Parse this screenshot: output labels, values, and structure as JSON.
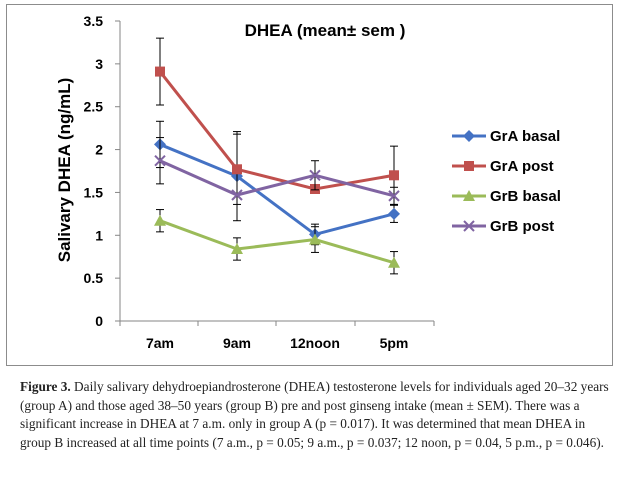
{
  "chart_data": {
    "type": "line",
    "title": "DHEA (mean± sem )",
    "ylabel": "Salivary DHEA (ng/mL)",
    "xlabel": "",
    "categories": [
      "7am",
      "9am",
      "12noon",
      "5pm"
    ],
    "ylim": [
      0,
      3.5
    ],
    "yticks": [
      "0",
      "0.5",
      "1",
      "1.5",
      "2",
      "2.5",
      "3",
      "3.5"
    ],
    "grid": false,
    "legend_position": "right",
    "series": [
      {
        "name": "GrA basal",
        "color": "#4472c4",
        "marker": "diamond",
        "values": [
          2.06,
          1.69,
          1.01,
          1.25
        ],
        "err": [
          0.27,
          0.52,
          0.12,
          0.1
        ]
      },
      {
        "name": "GrA post",
        "color": "#c0504d",
        "marker": "square",
        "values": [
          2.91,
          1.77,
          1.54,
          1.7
        ],
        "err": [
          0.39,
          0.41,
          0.0,
          0.34
        ]
      },
      {
        "name": "GrB basal",
        "color": "#9bbb59",
        "marker": "triangle",
        "values": [
          1.17,
          0.84,
          0.95,
          0.68
        ],
        "err": [
          0.13,
          0.13,
          0.15,
          0.13
        ]
      },
      {
        "name": "GrB post",
        "color": "#8064a2",
        "marker": "x",
        "values": [
          1.87,
          1.47,
          1.7,
          1.46
        ],
        "err": [
          0.27,
          0.0,
          0.17,
          0.1
        ]
      }
    ]
  },
  "caption": {
    "label": "Figure 3.",
    "text": " Daily salivary dehydroepiandrosterone (DHEA) testosterone levels for individuals aged 20–32 years (group A) and those aged 38–50 years (group B) pre and post ginseng intake (mean ± SEM). There was a significant increase in DHEA at 7 a.m. only in group A (p = 0.017). It was determined that mean DHEA in group B increased at all time points (7 a.m., p = 0.05; 9 a.m., p = 0.037; 12 noon, p = 0.04, 5 p.m., p = 0.046)."
  }
}
